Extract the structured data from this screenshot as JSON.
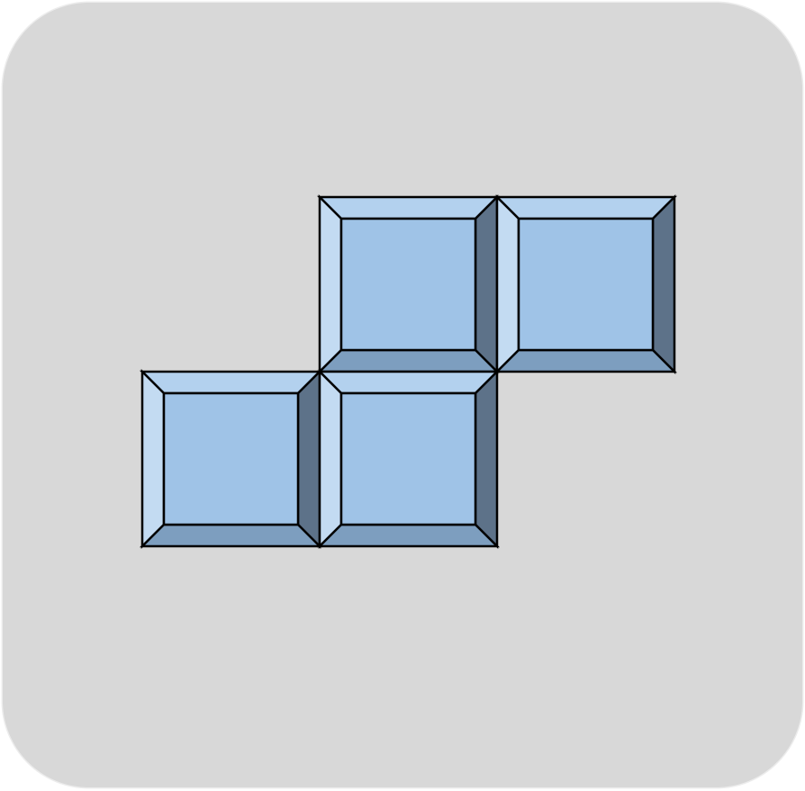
{
  "piece": {
    "shape": "S-tetromino",
    "cells": [
      {
        "row": 0,
        "col": 1
      },
      {
        "row": 0,
        "col": 2
      },
      {
        "row": 1,
        "col": 0
      },
      {
        "row": 1,
        "col": 1
      }
    ]
  },
  "colors": {
    "background": "#d8d8d8",
    "face": "#9fc3e7",
    "top_bevel": "#b3d1ee",
    "left_bevel": "#c3dbf2",
    "right_bevel": "#5d7289",
    "bottom_bevel": "#7d9ebf",
    "outline": "#000000"
  }
}
